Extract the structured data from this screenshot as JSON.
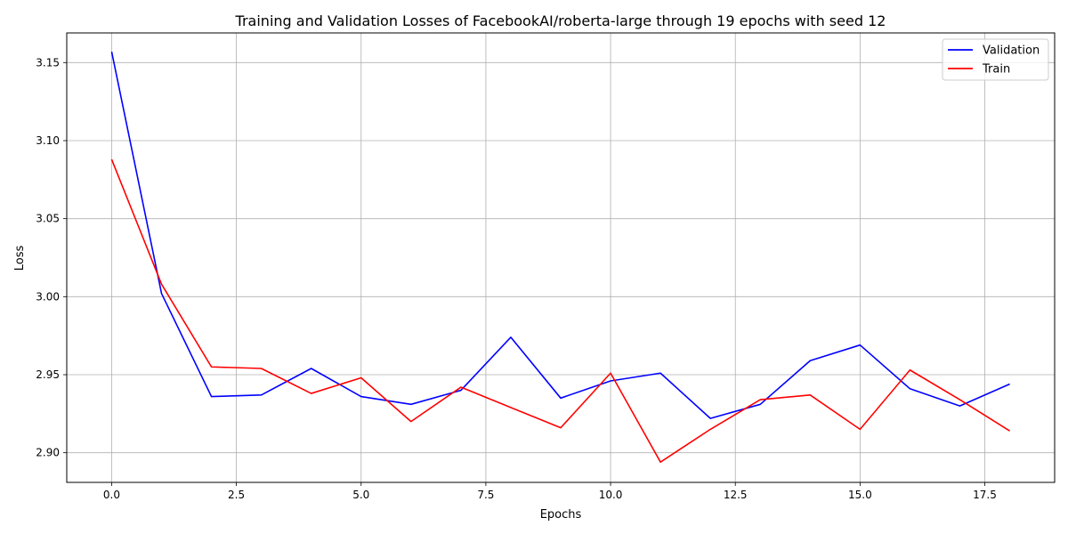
{
  "chart_data": {
    "type": "line",
    "title": "Training and Validation Losses of FacebookAI/roberta-large through 19 epochs with seed 12",
    "xlabel": "Epochs",
    "ylabel": "Loss",
    "xlim": [
      -0.9,
      18.9
    ],
    "ylim": [
      2.881,
      3.169
    ],
    "xticks": [
      0.0,
      2.5,
      5.0,
      7.5,
      10.0,
      12.5,
      15.0,
      17.5
    ],
    "xtick_labels": [
      "0.0",
      "2.5",
      "5.0",
      "7.5",
      "10.0",
      "12.5",
      "15.0",
      "17.5"
    ],
    "yticks": [
      2.9,
      2.95,
      3.0,
      3.05,
      3.1,
      3.15
    ],
    "ytick_labels": [
      "2.90",
      "2.95",
      "3.00",
      "3.05",
      "3.10",
      "3.15"
    ],
    "grid": true,
    "legend_position": "top-right",
    "x": [
      0,
      1,
      2,
      3,
      4,
      5,
      6,
      7,
      8,
      9,
      10,
      11,
      12,
      13,
      14,
      15,
      16,
      17,
      18
    ],
    "series": [
      {
        "name": "Validation",
        "color": "#0000ff",
        "values": [
          3.157,
          3.002,
          2.936,
          2.937,
          2.954,
          2.936,
          2.931,
          2.94,
          2.974,
          2.935,
          2.946,
          2.951,
          2.922,
          2.931,
          2.959,
          2.969,
          2.941,
          2.93,
          2.944
        ]
      },
      {
        "name": "Train",
        "color": "#ff0000",
        "values": [
          3.088,
          3.008,
          2.955,
          2.954,
          2.938,
          2.948,
          2.92,
          2.942,
          2.929,
          2.916,
          2.951,
          2.894,
          2.915,
          2.934,
          2.937,
          2.915,
          2.953,
          2.934,
          2.914
        ]
      }
    ]
  }
}
